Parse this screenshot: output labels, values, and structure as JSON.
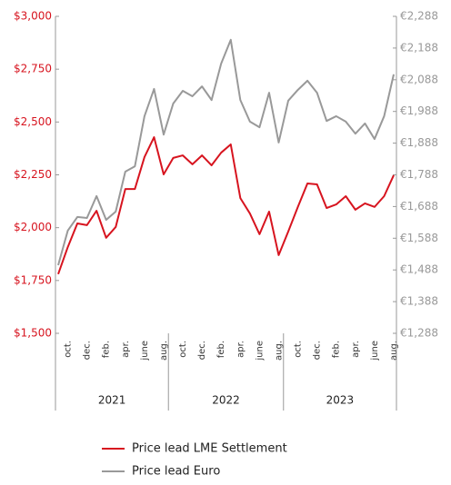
{
  "chart_data": {
    "type": "line",
    "categories": [
      null,
      "oct.",
      null,
      "dec.",
      null,
      "feb.",
      null,
      "apr.",
      null,
      "june",
      null,
      "aug.",
      null,
      "oct.",
      null,
      "dec.",
      null,
      "feb.",
      null,
      "apr.",
      null,
      "june",
      null,
      "aug.",
      null,
      "oct.",
      null,
      "dec.",
      null,
      "feb.",
      null,
      "apr.",
      null,
      "june",
      null,
      "aug."
    ],
    "groups": [
      "2021",
      "2022",
      "2023"
    ],
    "series": [
      {
        "name": "Price lead LME Settlement",
        "color": "#d7141f",
        "axis": "y",
        "values": [
          1780,
          1908,
          2020,
          2012,
          2080,
          1952,
          2003,
          2183,
          2183,
          2334,
          2428,
          2252,
          2330,
          2342,
          2300,
          2342,
          2295,
          2355,
          2394,
          2140,
          2067,
          1969,
          2076,
          1870,
          1982,
          2098,
          2209,
          2205,
          2093,
          2110,
          2149,
          2085,
          2115,
          2098,
          2149,
          2248
        ]
      },
      {
        "name": "Price lead Euro",
        "color": "#999999",
        "axis": "y2",
        "values": [
          1503,
          1612,
          1655,
          1652,
          1721,
          1646,
          1672,
          1798,
          1815,
          1973,
          2059,
          1915,
          2013,
          2053,
          2036,
          2067,
          2024,
          2139,
          2214,
          2024,
          1956,
          1938,
          2047,
          1890,
          2022,
          2056,
          2085,
          2047,
          1958,
          1973,
          1956,
          1918,
          1950,
          1901,
          1973,
          2105
        ]
      }
    ],
    "ylim": [
      1500,
      3000
    ],
    "yticks": [
      {
        "value": 1500,
        "label": "$1,500"
      },
      {
        "value": 1750,
        "label": "$1,750"
      },
      {
        "value": 2000,
        "label": "$2,000"
      },
      {
        "value": 2250,
        "label": "$2,250"
      },
      {
        "value": 2500,
        "label": "$2,500"
      },
      {
        "value": 2750,
        "label": "$2,750"
      },
      {
        "value": 3000,
        "label": "$3,000"
      }
    ],
    "y2lim": [
      1288,
      2288
    ],
    "y2ticks": [
      {
        "value": 1288,
        "label": "€1,288"
      },
      {
        "value": 1388,
        "label": "€1,388"
      },
      {
        "value": 1488,
        "label": "€1,488"
      },
      {
        "value": 1588,
        "label": "€1,588"
      },
      {
        "value": 1688,
        "label": "€1,688"
      },
      {
        "value": 1788,
        "label": "€1,788"
      },
      {
        "value": 1888,
        "label": "€1,888"
      },
      {
        "value": 1988,
        "label": "€1,988"
      },
      {
        "value": 2088,
        "label": "€2,088"
      },
      {
        "value": 2188,
        "label": "€2,188"
      },
      {
        "value": 2288,
        "label": "€2,288"
      }
    ],
    "ytick_color": "#d7141f",
    "y2tick_color": "#999999"
  }
}
